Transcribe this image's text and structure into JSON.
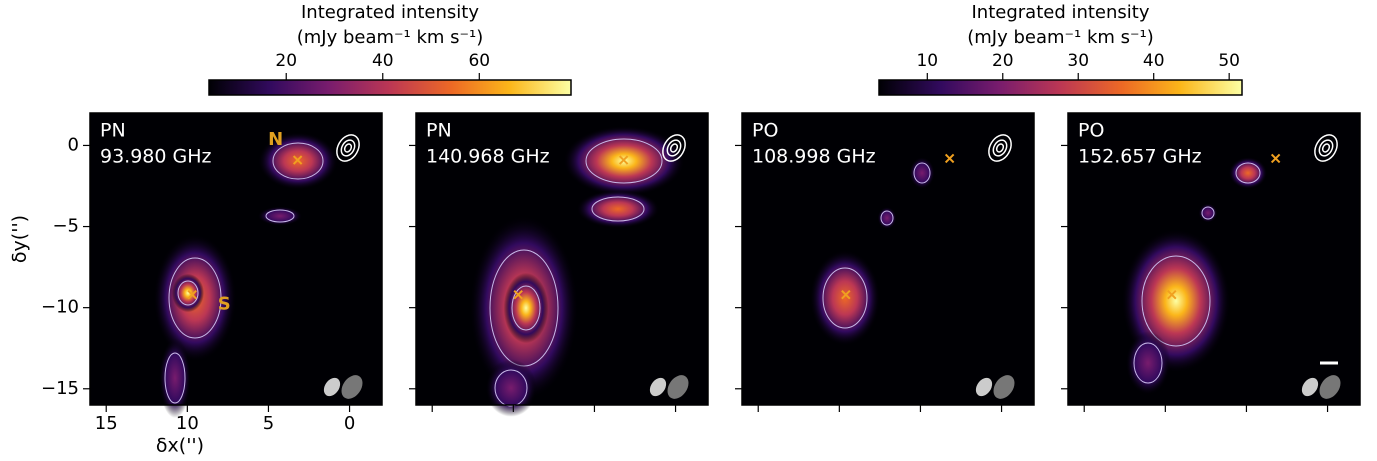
{
  "colorbars": [
    {
      "label": [
        "Integrated intensity",
        "(mJy beam⁻¹ km s⁻¹)"
      ],
      "lim": [
        4,
        79
      ],
      "ticks": [
        20,
        40,
        60
      ]
    },
    {
      "label": [
        "Integrated intensity",
        "(mJy beam⁻¹ km s⁻¹)"
      ],
      "lim": [
        3.6,
        51.7
      ],
      "ticks": [
        10,
        20,
        30,
        40,
        50
      ]
    }
  ],
  "chart_data": [
    {
      "type": "image",
      "text": [
        "PN",
        "93.980 GHz"
      ],
      "xlim": [
        16,
        -2
      ],
      "ylim": [
        -16,
        2
      ],
      "xticks": [
        15,
        10,
        5,
        0
      ],
      "yticks": [
        0,
        {
          "value": -5,
          "label": "−5"
        },
        {
          "value": -10,
          "label": "−10"
        },
        {
          "value": -15,
          "label": "−15"
        }
      ],
      "tick_labels": true,
      "xlabel": "δx('')",
      "ylabel": "δy('')",
      "markers": [
        {
          "x": 3.2,
          "y": -0.9,
          "label": "N"
        },
        {
          "x": 9.7,
          "y": -9.2,
          "label": "S"
        }
      ]
    },
    {
      "type": "image",
      "text": [
        "PN",
        "140.968 GHz"
      ],
      "xlim": [
        16,
        -2
      ],
      "ylim": [
        -16,
        2
      ],
      "xticks": [
        15,
        10,
        5,
        0
      ],
      "yticks": [
        0,
        -5,
        -10,
        -15
      ],
      "tick_labels": false,
      "markers": [
        {
          "x": 3.2,
          "y": -0.9
        },
        {
          "x": 9.7,
          "y": -9.2
        }
      ]
    },
    {
      "type": "image",
      "text": [
        "PO",
        "108.998 GHz"
      ],
      "xlim": [
        16,
        -2
      ],
      "ylim": [
        -16,
        2
      ],
      "xticks": [
        15,
        10,
        5,
        0
      ],
      "yticks": [
        0,
        -5,
        -10,
        -15
      ],
      "tick_labels": false,
      "markers": [
        {
          "x": 3.2,
          "y": -0.8
        },
        {
          "x": 9.6,
          "y": -9.2
        }
      ]
    },
    {
      "type": "image",
      "text": [
        "PO",
        "152.657 GHz"
      ],
      "xlim": [
        16,
        -2
      ],
      "ylim": [
        -16,
        2
      ],
      "xticks": [
        15,
        10,
        5,
        0
      ],
      "yticks": [
        0,
        -5,
        -10,
        -15
      ],
      "tick_labels": false,
      "markers": [
        {
          "x": 3.2,
          "y": -0.8
        },
        {
          "x": 9.6,
          "y": -9.2
        }
      ]
    }
  ]
}
